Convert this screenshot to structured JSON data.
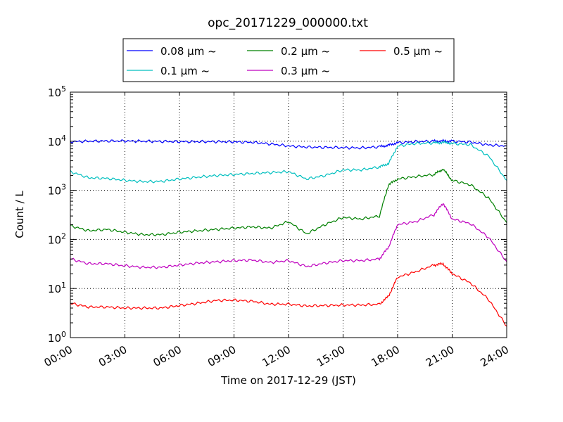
{
  "chart_data": {
    "type": "line",
    "title": "opc_20171229_000000.txt",
    "xlabel": "Time on 2017-12-29 (JST)",
    "ylabel": "Count / L",
    "y_scale": "log",
    "ylim": [
      1,
      100000
    ],
    "xlim": [
      "00:00",
      "24:00"
    ],
    "grid": true,
    "legend_placement": "top-center, above plot",
    "x_tick_labels": [
      "00:00",
      "03:00",
      "06:00",
      "09:00",
      "12:00",
      "15:00",
      "18:00",
      "21:00",
      "24:00"
    ],
    "y_tick_labels": [
      {
        "base": "10",
        "exp": "0"
      },
      {
        "base": "10",
        "exp": "1"
      },
      {
        "base": "10",
        "exp": "2"
      },
      {
        "base": "10",
        "exp": "3"
      },
      {
        "base": "10",
        "exp": "4"
      },
      {
        "base": "10",
        "exp": "5"
      }
    ],
    "x": [
      "00:00",
      "01:00",
      "02:00",
      "03:00",
      "04:00",
      "05:00",
      "06:00",
      "07:00",
      "08:00",
      "09:00",
      "10:00",
      "11:00",
      "12:00",
      "13:00",
      "14:00",
      "15:00",
      "16:00",
      "17:00",
      "17:30",
      "18:00",
      "19:00",
      "20:00",
      "20:30",
      "21:00",
      "22:00",
      "23:00",
      "24:00"
    ],
    "series": [
      {
        "name": "0.08 μm ~",
        "color": "#0000ff",
        "values": [
          9800,
          10000,
          10100,
          10100,
          10000,
          9900,
          9800,
          9800,
          9800,
          9700,
          9500,
          8800,
          8000,
          7600,
          7500,
          7400,
          7300,
          7700,
          8300,
          9300,
          9800,
          10000,
          10100,
          10000,
          9600,
          8400,
          8000
        ]
      },
      {
        "name": "0.1 μm ~",
        "color": "#00bfbf",
        "values": [
          2400,
          1800,
          1750,
          1600,
          1500,
          1520,
          1700,
          1850,
          2000,
          2100,
          2200,
          2300,
          2400,
          1700,
          2000,
          2600,
          2600,
          3000,
          3500,
          8000,
          9000,
          9200,
          9500,
          9000,
          8500,
          5000,
          1600
        ]
      },
      {
        "name": "0.2 μm ~",
        "color": "#008000",
        "values": [
          190,
          150,
          160,
          140,
          125,
          125,
          140,
          150,
          160,
          170,
          180,
          170,
          230,
          130,
          200,
          280,
          260,
          300,
          1300,
          1700,
          1900,
          2100,
          2700,
          1600,
          1300,
          700,
          220
        ]
      },
      {
        "name": "0.3 μm ~",
        "color": "#bf00bf",
        "values": [
          40,
          32,
          32,
          29,
          27,
          27,
          30,
          33,
          35,
          37,
          38,
          34,
          37,
          28,
          33,
          37,
          37,
          40,
          70,
          200,
          230,
          320,
          550,
          260,
          210,
          110,
          35
        ]
      },
      {
        "name": "0.5 μm ~",
        "color": "#ff0000",
        "values": [
          5,
          4.2,
          4.2,
          4.0,
          4.0,
          4.0,
          4.5,
          5.0,
          5.7,
          5.8,
          5.5,
          4.8,
          4.8,
          4.4,
          4.5,
          4.6,
          4.6,
          4.8,
          7,
          17,
          22,
          30,
          32,
          20,
          13,
          6,
          1.7
        ]
      }
    ]
  }
}
